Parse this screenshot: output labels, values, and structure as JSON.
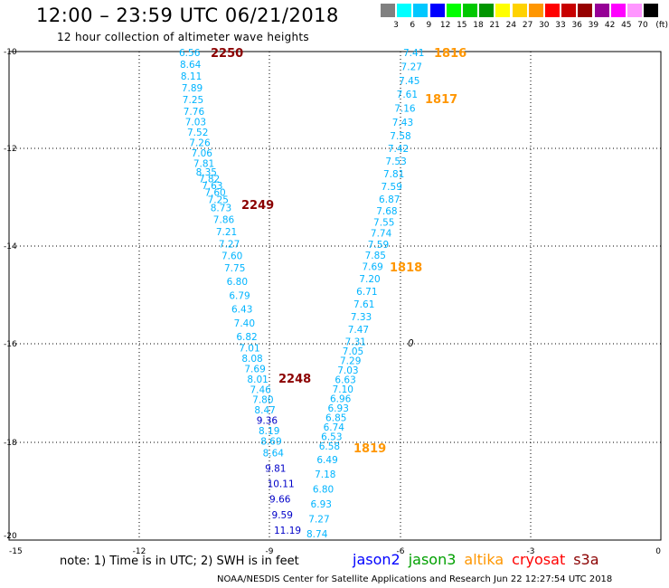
{
  "header": {
    "title": "12:00 – 23:59 UTC 06/21/2018",
    "subtitle": "12 hour collection of altimeter wave heights"
  },
  "color_scale": {
    "unit": "(ft)",
    "colors": [
      "#808080",
      "#00ffff",
      "#00c8ff",
      "#0000ff",
      "#00ff00",
      "#00c800",
      "#009600",
      "#ffff00",
      "#ffd200",
      "#ff9600",
      "#ff0000",
      "#c80000",
      "#960000",
      "#960096",
      "#ff00ff",
      "#ff96ff",
      "#000000"
    ],
    "labels": [
      "3",
      "6",
      "9",
      "12",
      "15",
      "18",
      "21",
      "24",
      "27",
      "30",
      "33",
      "36",
      "39",
      "42",
      "45",
      "70"
    ]
  },
  "axes": {
    "lon_ticks": [
      "-15",
      "-12",
      "-9",
      "-6",
      "-3",
      "0"
    ],
    "lat_ticks": [
      "-10",
      "-12",
      "-14",
      "-16",
      "-18",
      "-20"
    ]
  },
  "passes": [
    {
      "label": "2250",
      "color": "#8b0000"
    },
    {
      "label": "2249",
      "color": "#8b0000"
    },
    {
      "label": "2248",
      "color": "#8b0000"
    },
    {
      "label": "1816",
      "color": "#ff9600"
    },
    {
      "label": "1817",
      "color": "#ff9600"
    },
    {
      "label": "1818",
      "color": "#ff9600"
    },
    {
      "label": "1819",
      "color": "#ff9600"
    }
  ],
  "track_cryosat": {
    "color_light": "#00b4ff",
    "color_dark": "#0000c8",
    "values": [
      "6.56",
      "8.64",
      "8.11",
      "7.89",
      "7.25",
      "7.76",
      "7.03",
      "7.52",
      "7.26",
      "7.06",
      "7.81",
      "8.35",
      "7.82",
      "7.63",
      "7.60",
      "7.25",
      "8.73",
      "7.86",
      "7.21",
      "7.27",
      "7.60",
      "7.75",
      "6.80",
      "6.79",
      "6.43",
      "7.40",
      "6.82",
      "7.01",
      "8.08",
      "7.69",
      "8.01",
      "7.46",
      "7.80",
      "8.47",
      "9.36",
      "8.19",
      "8.69",
      "8.64",
      "9.81",
      "10.11",
      "9.66",
      "9.59",
      "11.19"
    ]
  },
  "track_altika": {
    "values": [
      "7.41",
      "7.27",
      "7.45",
      "7.61",
      "7.16",
      "7.43",
      "7.58",
      "7.42",
      "7.53",
      "7.81",
      "7.59",
      "6.87",
      "7.68",
      "7.55",
      "7.74",
      "7.59",
      "7.85",
      "7.69",
      "7.20",
      "6.71",
      "7.61",
      "7.33",
      "7.47",
      "7.31",
      "7.05",
      "7.29",
      "7.03",
      "6.63",
      "7.10",
      "6.96",
      "6.93",
      "6.85",
      "6.74",
      "6.53",
      "6.58",
      "6.49",
      "7.18",
      "6.80",
      "6.93",
      "7.27",
      "8.74"
    ]
  },
  "marker": {
    "label": "0"
  },
  "note": "note:  1) Time is in UTC; 2) SWH is in feet",
  "legend": [
    {
      "name": "jason2",
      "color": "#0000ff"
    },
    {
      "name": "jason3",
      "color": "#00a000"
    },
    {
      "name": "altika",
      "color": "#ff9600"
    },
    {
      "name": "cryosat",
      "color": "#ff0000"
    },
    {
      "name": "s3a",
      "color": "#8b0000"
    }
  ],
  "footer": "NOAA/NESDIS Center for Satellite Applications and Research    Jun 22 12:27:54 UTC 2018"
}
